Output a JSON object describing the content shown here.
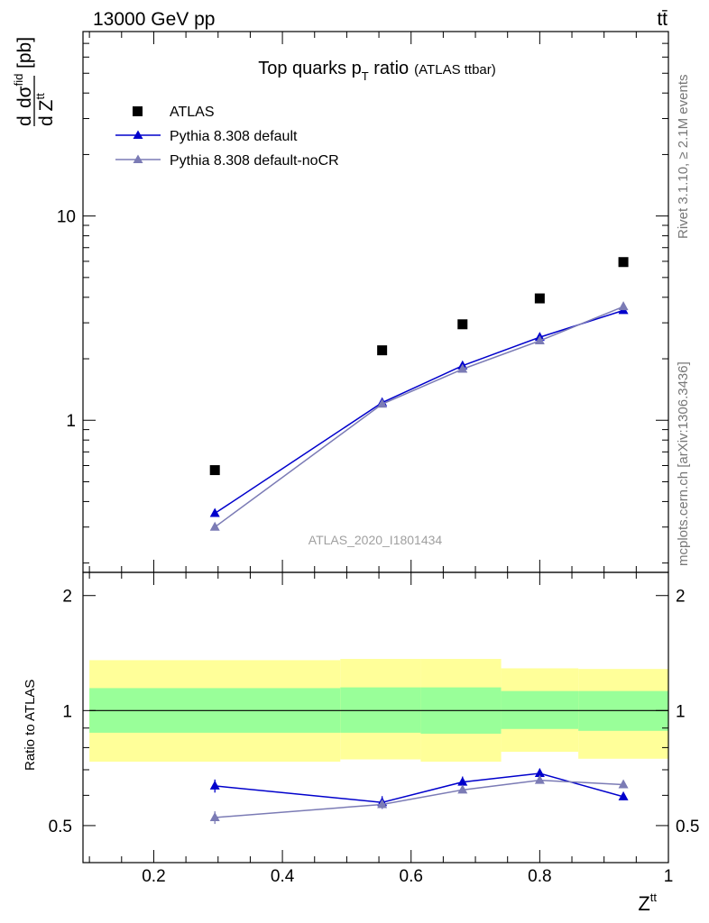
{
  "header": {
    "beam": "13000 GeV pp",
    "process": "tt̄"
  },
  "side_text": {
    "rivet": "Rivet 3.1.10, ≥ 2.1M events",
    "source": "mcplots.cern.ch [arXiv:1306.3436]"
  },
  "chart_data": [
    {
      "type": "scatter",
      "title": "Top quarks p",
      "title_sub": "T",
      "title_rest": " ratio",
      "title_note": "(ATLAS ttbar)",
      "ylabel_parts": {
        "d": "d",
        "sigma": "dσ",
        "fid": "fid",
        "denom_d": "d",
        "z": "Z",
        "tt": "tt",
        "unit": "[pb]"
      },
      "xlim": [
        0.09,
        1.0
      ],
      "ylim": [
        0.18,
        80
      ],
      "ylog": true,
      "y_ticks": [
        {
          "value": 1,
          "label": "1"
        },
        {
          "value": 10,
          "label": "10"
        }
      ],
      "watermark": "ATLAS_2020_I1801434",
      "legend_position": "top-left",
      "series": [
        {
          "name": "ATLAS",
          "color": "#000000",
          "marker": "square",
          "x": [
            0.295,
            0.555,
            0.68,
            0.8,
            0.93
          ],
          "y": [
            0.57,
            2.2,
            2.95,
            3.95,
            5.95
          ]
        },
        {
          "name": "Pythia 8.308 default",
          "color": "#0000cc",
          "marker": "triangle",
          "x": [
            0.295,
            0.555,
            0.68,
            0.8,
            0.93
          ],
          "y": [
            0.35,
            1.22,
            1.85,
            2.55,
            3.45
          ]
        },
        {
          "name": "Pythia 8.308 default-noCR",
          "color": "#7b7bb5",
          "marker": "triangle",
          "x": [
            0.295,
            0.555,
            0.68,
            0.8,
            0.93
          ],
          "y": [
            0.3,
            1.2,
            1.78,
            2.45,
            3.6
          ]
        }
      ]
    },
    {
      "type": "scatter",
      "ylabel": "Ratio to ATLAS",
      "xlabel": "Z",
      "xlabel_sup": "tt",
      "xlim": [
        0.09,
        1.0
      ],
      "ylim": [
        0.4,
        2.3
      ],
      "ylog": true,
      "x_ticks": [
        0.2,
        0.4,
        0.6,
        0.8,
        1
      ],
      "x_tick_labels": [
        "0.2",
        "0.4",
        "0.6",
        "0.8",
        "1"
      ],
      "y_ticks": [
        {
          "value": 0.5,
          "label": "0.5"
        },
        {
          "value": 1,
          "label": "1"
        },
        {
          "value": 2,
          "label": "2"
        }
      ],
      "bands": [
        {
          "x0": 0.1,
          "x1": 0.49,
          "yellow": [
            0.735,
            1.355
          ],
          "green": [
            0.875,
            1.145
          ]
        },
        {
          "x0": 0.49,
          "x1": 0.615,
          "yellow": [
            0.745,
            1.365
          ],
          "green": [
            0.875,
            1.15
          ]
        },
        {
          "x0": 0.615,
          "x1": 0.74,
          "yellow": [
            0.735,
            1.365
          ],
          "green": [
            0.87,
            1.15
          ]
        },
        {
          "x0": 0.74,
          "x1": 0.86,
          "yellow": [
            0.78,
            1.29
          ],
          "green": [
            0.895,
            1.125
          ]
        },
        {
          "x0": 0.86,
          "x1": 1.0,
          "yellow": [
            0.748,
            1.285
          ],
          "green": [
            0.885,
            1.125
          ]
        }
      ],
      "series": [
        {
          "name": "Pythia 8.308 default",
          "color": "#0000cc",
          "x": [
            0.295,
            0.555,
            0.68,
            0.8,
            0.93
          ],
          "y": [
            0.635,
            0.575,
            0.65,
            0.685,
            0.595
          ],
          "err": [
            0.025,
            0.022,
            0.022,
            0.02,
            0.012
          ]
        },
        {
          "name": "Pythia 8.308 default-noCR",
          "color": "#7b7bb5",
          "x": [
            0.295,
            0.555,
            0.68,
            0.8,
            0.93
          ],
          "y": [
            0.525,
            0.568,
            0.62,
            0.657,
            0.64
          ],
          "err": [
            0.02,
            0.015,
            0.012,
            0.01,
            0.008
          ]
        }
      ]
    }
  ]
}
